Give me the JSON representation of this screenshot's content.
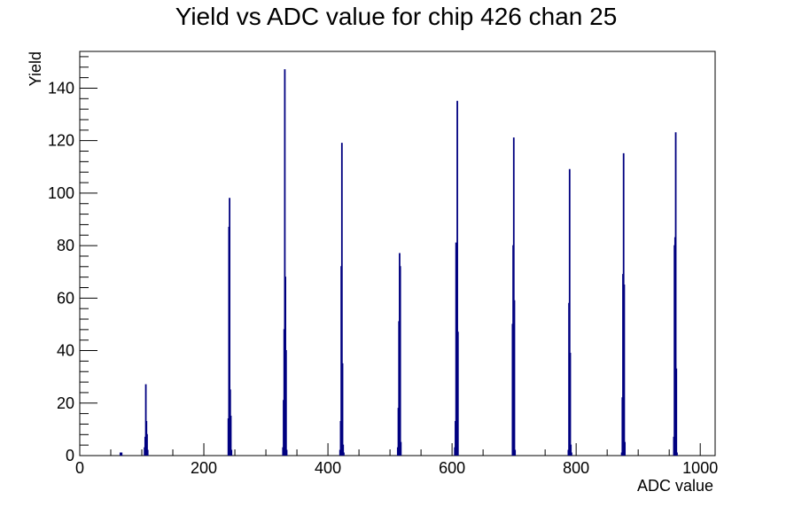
{
  "chart_data": {
    "type": "bar",
    "title": "Yield vs ADC value for chip 426 chan 25",
    "xlabel": "ADC value",
    "ylabel": "Yield",
    "xlim": [
      0,
      1024
    ],
    "ylim": [
      0,
      154
    ],
    "x_ticks": [
      0,
      200,
      400,
      600,
      800,
      1000
    ],
    "y_ticks": [
      0,
      20,
      40,
      60,
      80,
      100,
      120,
      140
    ],
    "grid": false,
    "legend": "none",
    "line_color": "#000080",
    "bin_width": 1,
    "series": [
      {
        "x": [
          65,
          67,
          104,
          105,
          106,
          107,
          108,
          109,
          239,
          240,
          241,
          242,
          243,
          244,
          327,
          328,
          329,
          330,
          331,
          332,
          333,
          419,
          420,
          421,
          422,
          423,
          424,
          425,
          512,
          513,
          514,
          515,
          516,
          517,
          604,
          605,
          606,
          607,
          608,
          609,
          697,
          698,
          699,
          700,
          701,
          787,
          788,
          789,
          790,
          791,
          792,
          873,
          874,
          875,
          876,
          877,
          878,
          957,
          958,
          959,
          960,
          961,
          962
        ],
        "values": [
          1,
          1,
          3,
          7,
          27,
          13,
          8,
          2,
          14,
          87,
          98,
          25,
          15,
          2,
          3,
          21,
          48,
          147,
          68,
          40,
          2,
          2,
          13,
          72,
          119,
          35,
          4,
          1,
          3,
          18,
          51,
          77,
          72,
          5,
          3,
          13,
          81,
          37,
          135,
          47,
          50,
          80,
          121,
          59,
          2,
          2,
          58,
          109,
          39,
          4,
          1,
          1,
          22,
          69,
          115,
          65,
          5,
          7,
          80,
          83,
          123,
          33,
          1
        ]
      }
    ]
  }
}
